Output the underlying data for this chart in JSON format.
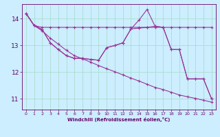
{
  "xlabel": "Windchill (Refroidissement éolien,°C)",
  "bg_color": "#cceeff",
  "line_color": "#993399",
  "grid_color": "#aadddd",
  "xlim": [
    -0.5,
    23.5
  ],
  "ylim": [
    10.6,
    14.55
  ],
  "yticks": [
    11,
    12,
    13,
    14
  ],
  "xticks": [
    0,
    1,
    2,
    3,
    4,
    5,
    6,
    7,
    8,
    9,
    10,
    11,
    12,
    13,
    14,
    15,
    16,
    17,
    18,
    19,
    20,
    21,
    22,
    23
  ],
  "s1x": [
    0,
    1,
    2,
    3,
    4,
    5,
    6,
    7,
    8,
    9,
    10,
    11,
    12,
    13,
    14,
    15,
    16,
    17,
    18,
    19,
    20,
    21,
    22,
    23
  ],
  "s1y": [
    14.2,
    13.75,
    13.68,
    13.68,
    13.68,
    13.68,
    13.68,
    13.68,
    13.68,
    13.68,
    13.68,
    13.68,
    13.68,
    13.68,
    13.68,
    13.68,
    13.68,
    13.68,
    13.68,
    13.68,
    13.68,
    13.68,
    13.68,
    13.68
  ],
  "s2x": [
    0,
    1,
    2,
    3,
    4,
    5,
    6,
    7,
    8,
    9,
    10,
    11,
    12,
    13,
    14,
    15,
    16,
    17,
    18,
    19,
    20,
    21,
    22,
    23
  ],
  "s2y": [
    14.2,
    13.75,
    13.55,
    13.28,
    13.05,
    12.82,
    12.62,
    12.5,
    12.38,
    12.25,
    12.13,
    12.02,
    11.9,
    11.78,
    11.67,
    11.55,
    11.43,
    11.35,
    11.25,
    11.15,
    11.08,
    11.02,
    10.95,
    10.88
  ],
  "s3x": [
    0,
    1,
    2,
    3,
    4,
    5,
    6,
    7,
    8,
    9,
    10,
    11,
    12,
    13,
    14,
    15,
    16,
    17,
    18,
    19,
    20,
    21,
    22,
    23
  ],
  "s3y": [
    14.2,
    13.75,
    13.6,
    13.1,
    12.85,
    12.62,
    12.52,
    12.52,
    12.48,
    12.45,
    12.92,
    13.0,
    13.1,
    13.62,
    13.65,
    13.68,
    13.72,
    13.68,
    12.85,
    12.85,
    11.75,
    11.75,
    11.75,
    11.0
  ],
  "s4x": [
    0,
    1,
    2,
    3,
    4,
    5,
    6,
    7,
    8,
    9,
    10,
    11,
    12,
    13,
    14,
    15,
    16,
    17,
    18,
    19,
    20,
    21,
    22,
    23
  ],
  "s4y": [
    14.2,
    13.75,
    13.6,
    13.1,
    12.85,
    12.62,
    12.52,
    12.52,
    12.48,
    12.45,
    12.92,
    13.0,
    13.1,
    13.62,
    13.95,
    14.35,
    13.72,
    13.68,
    12.85,
    12.85,
    11.75,
    11.75,
    11.75,
    11.0
  ]
}
